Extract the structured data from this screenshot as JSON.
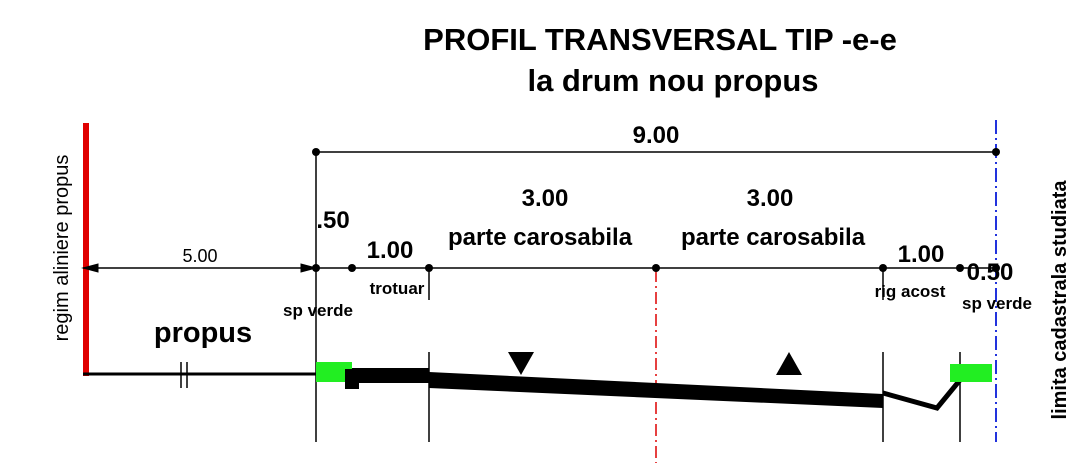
{
  "header": {
    "title": "PROFIL TRANSVERSAL TIP -e-e",
    "subtitle": "la drum nou propus"
  },
  "dimensions": {
    "total": "9.00",
    "left": "5.00",
    "verge_left": ".50",
    "sidewalk": "1.00",
    "lane_left": "3.00",
    "lane_right": "3.00",
    "shoulder": "1.00",
    "verge_right": "0.50"
  },
  "labels": {
    "lane_left": "parte carosabila",
    "lane_right": "parte carosabila",
    "sidewalk": "trotuar",
    "verge_left": "sp verde",
    "shoulder": "rig acost",
    "verge_right": "sp verde",
    "proposed": "propus",
    "left_limit": "regim aliniere propus",
    "right_limit": "limita cadastrala studiata"
  }
}
